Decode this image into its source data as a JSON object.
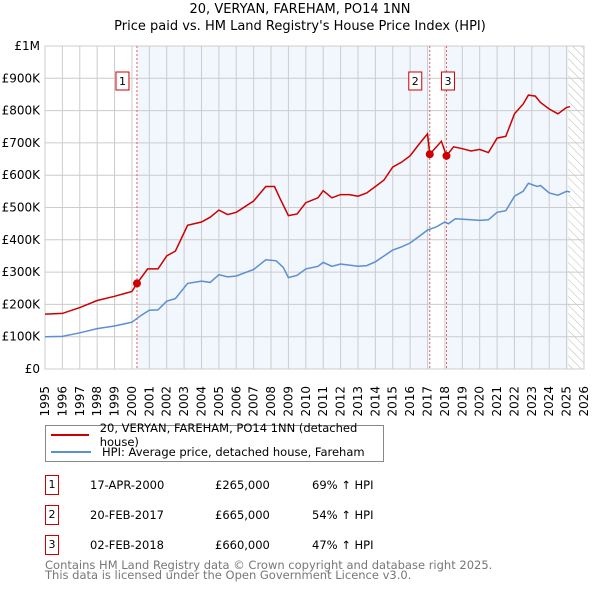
{
  "title_line1": "20, VERYAN, FAREHAM, PO14 1NN",
  "title_line2": "Price paid vs. HM Land Registry's House Price Index (HPI)",
  "chart_data": {
    "type": "line",
    "title": "20, VERYAN, FAREHAM, PO14 1NN — Price paid vs. HM Land Registry's House Price Index (HPI)",
    "xlim": [
      1995,
      2026
    ],
    "ylim": [
      0,
      1000000
    ],
    "x_ticks": [
      "1995",
      "1996",
      "1997",
      "1998",
      "1999",
      "2000",
      "2001",
      "2002",
      "2003",
      "2004",
      "2005",
      "2006",
      "2007",
      "2008",
      "2009",
      "2010",
      "2011",
      "2012",
      "2013",
      "2014",
      "2015",
      "2016",
      "2017",
      "2018",
      "2019",
      "2020",
      "2021",
      "2022",
      "2023",
      "2024",
      "2025",
      "2026"
    ],
    "y_ticks": [
      {
        "value": 0,
        "label": "£0"
      },
      {
        "value": 100000,
        "label": "£100K"
      },
      {
        "value": 200000,
        "label": "£200K"
      },
      {
        "value": 300000,
        "label": "£300K"
      },
      {
        "value": 400000,
        "label": "£400K"
      },
      {
        "value": 500000,
        "label": "£500K"
      },
      {
        "value": 600000,
        "label": "£600K"
      },
      {
        "value": 700000,
        "label": "£700K"
      },
      {
        "value": 800000,
        "label": "£800K"
      },
      {
        "value": 900000,
        "label": "£900K"
      },
      {
        "value": 1000000,
        "label": "£1M"
      }
    ],
    "grid": true,
    "forecast_hatch_from": 2025.1,
    "series": [
      {
        "name": "20, VERYAN, FAREHAM, PO14 1NN (detached house)",
        "color": "#cc0000",
        "x": [
          1995,
          1996,
          1997,
          1998,
          1999,
          2000,
          2000.29,
          2000.9,
          2001.5,
          2002,
          2002.5,
          2003.2,
          2004,
          2004.5,
          2005,
          2005.5,
          2006,
          2007,
          2007.7,
          2008.2,
          2008.5,
          2009,
          2009.5,
          2010,
          2010.7,
          2011,
          2011.5,
          2012,
          2012.5,
          2013,
          2013.5,
          2014,
          2014.5,
          2015,
          2015.5,
          2016,
          2016.5,
          2017.0,
          2017.13,
          2017.8,
          2018.09,
          2018.5,
          2019,
          2019.5,
          2020,
          2020.5,
          2021,
          2021.5,
          2022,
          2022.5,
          2022.8,
          2023.2,
          2023.5,
          2024,
          2024.5,
          2025,
          2025.2
        ],
        "y": [
          170000,
          172000,
          190000,
          212000,
          225000,
          240000,
          265000,
          310000,
          310000,
          350000,
          365000,
          445000,
          455000,
          470000,
          492000,
          478000,
          485000,
          520000,
          565000,
          565000,
          530000,
          475000,
          480000,
          515000,
          530000,
          552000,
          530000,
          540000,
          540000,
          535000,
          545000,
          565000,
          585000,
          625000,
          640000,
          660000,
          695000,
          728000,
          665000,
          705000,
          660000,
          688000,
          682000,
          675000,
          680000,
          670000,
          715000,
          720000,
          790000,
          820000,
          848000,
          845000,
          825000,
          805000,
          790000,
          810000,
          812000
        ]
      },
      {
        "name": "HPI: Average price, detached house, Fareham",
        "color": "#5b8fd4",
        "x": [
          1995,
          1996,
          1997,
          1998,
          1999,
          2000,
          2000.5,
          2001,
          2001.5,
          2002,
          2002.5,
          2003.2,
          2004,
          2004.5,
          2005,
          2005.5,
          2006,
          2007,
          2007.7,
          2008.3,
          2008.7,
          2009,
          2009.5,
          2010,
          2010.7,
          2011,
          2011.5,
          2012,
          2013,
          2013.5,
          2014,
          2015,
          2015.5,
          2016,
          2016.5,
          2017,
          2017.5,
          2018,
          2018.2,
          2018.6,
          2019.5,
          2020,
          2020.5,
          2021,
          2021.5,
          2022,
          2022.5,
          2022.8,
          2023.3,
          2023.5,
          2024,
          2024.5,
          2025,
          2025.2
        ],
        "y": [
          100000,
          101000,
          112000,
          125000,
          133000,
          145000,
          165000,
          182000,
          183000,
          210000,
          218000,
          265000,
          272000,
          268000,
          292000,
          285000,
          288000,
          308000,
          338000,
          335000,
          315000,
          283000,
          290000,
          310000,
          318000,
          330000,
          318000,
          325000,
          318000,
          320000,
          332000,
          368000,
          378000,
          390000,
          410000,
          430000,
          440000,
          455000,
          450000,
          465000,
          462000,
          460000,
          462000,
          485000,
          490000,
          535000,
          550000,
          575000,
          565000,
          568000,
          545000,
          538000,
          550000,
          548000
        ]
      }
    ],
    "sales": [
      {
        "marker": "1",
        "x": 2000.29,
        "date": "17-APR-2000",
        "price_value": 265000,
        "price": "£265,000",
        "hpi": "69% ↑ HPI"
      },
      {
        "marker": "2",
        "x": 2017.13,
        "date": "20-FEB-2017",
        "price_value": 665000,
        "price": "£665,000",
        "hpi": "54% ↑ HPI"
      },
      {
        "marker": "3",
        "x": 2018.09,
        "date": "02-FEB-2018",
        "price_value": 660000,
        "price": "£660,000",
        "hpi": "47% ↑ HPI"
      }
    ]
  },
  "legend": {
    "property": "20, VERYAN, FAREHAM, PO14 1NN (detached house)",
    "hpi": "HPI: Average price, detached house, Fareham"
  },
  "footer": {
    "line1": "Contains HM Land Registry data © Crown copyright and database right 2025.",
    "line2": "This data is licensed under the Open Government Licence v3.0."
  }
}
